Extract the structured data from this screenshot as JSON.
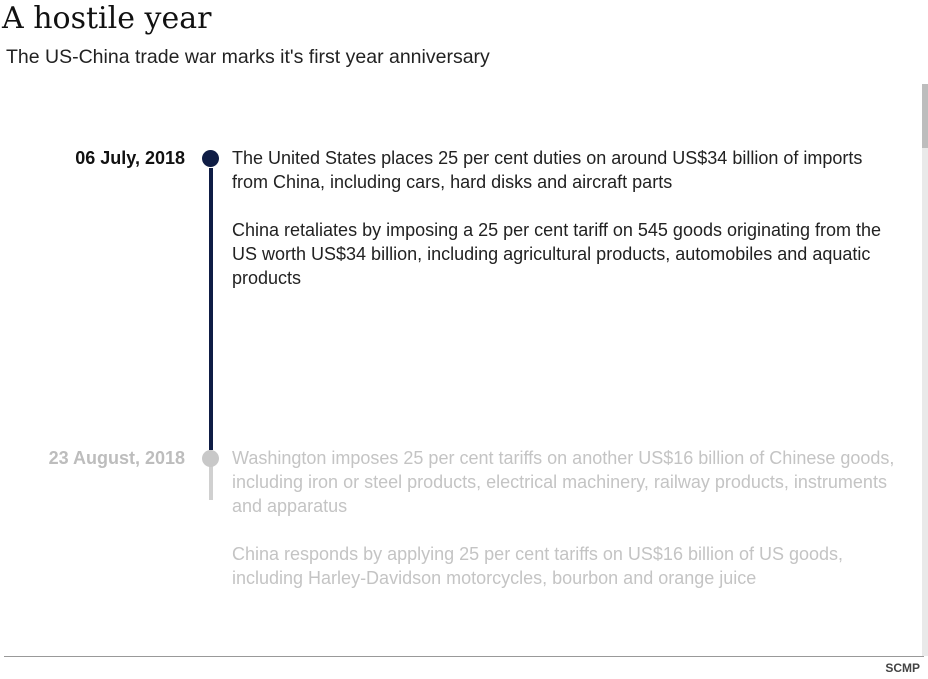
{
  "header": {
    "title": "A hostile year",
    "subtitle": "The US-China trade war marks it's first year anniversary"
  },
  "timeline": {
    "events": [
      {
        "date": "06 July, 2018",
        "state": "active",
        "paragraphs": [
          "The United States places 25 per cent duties on around US$34 billion of imports from China, including cars, hard disks and aircraft parts",
          "China retaliates by imposing a 25 per cent tariff on 545 goods originating from the US worth US$34 billion, including agricultural products, automobiles and aquatic products"
        ]
      },
      {
        "date": "23 August, 2018",
        "state": "inactive",
        "paragraphs": [
          "Washington imposes 25 per cent tariffs on another US$16 billion of Chinese goods, including iron or steel products, electrical machinery, railway products, instruments and apparatus",
          "China responds by applying 25 per cent tariffs on US$16 billion of US goods, including Harley-Davidson motorcycles, bourbon and orange juice"
        ]
      }
    ],
    "colors": {
      "active_dot": "#0f1d45",
      "active_line": "#0f1d45",
      "inactive_dot": "#c8c8c8",
      "inactive_line": "#d0d0d0"
    }
  },
  "footer": {
    "source": "SCMP"
  }
}
